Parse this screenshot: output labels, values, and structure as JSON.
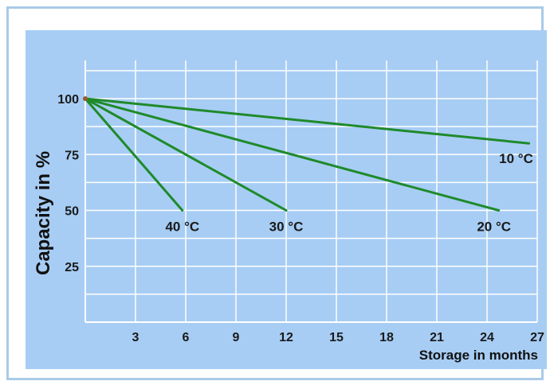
{
  "chart_data": {
    "type": "line",
    "xlabel": "Storage in months",
    "ylabel": "Capacity in %",
    "xlim": [
      0,
      27
    ],
    "ylim": [
      0,
      100
    ],
    "x_ticks": [
      "3",
      "6",
      "9",
      "12",
      "15",
      "18",
      "21",
      "24",
      "27"
    ],
    "y_ticks": [
      "25",
      "50",
      "75",
      "100"
    ],
    "grid": true,
    "series": [
      {
        "name": "40 °C",
        "x": [
          0,
          5.8
        ],
        "y": [
          100,
          50
        ]
      },
      {
        "name": "30 °C",
        "x": [
          0,
          12
        ],
        "y": [
          100,
          50
        ]
      },
      {
        "name": "20 °C",
        "x": [
          0,
          24.7
        ],
        "y": [
          100,
          50
        ]
      },
      {
        "name": "10 °C",
        "x": [
          0,
          26.5
        ],
        "y": [
          100,
          80
        ]
      }
    ]
  },
  "colors": {
    "plot_background": "#a7cdf4",
    "grid": "#ffffff",
    "line": "#1f8a2a",
    "frame": "#a9cbe8"
  }
}
